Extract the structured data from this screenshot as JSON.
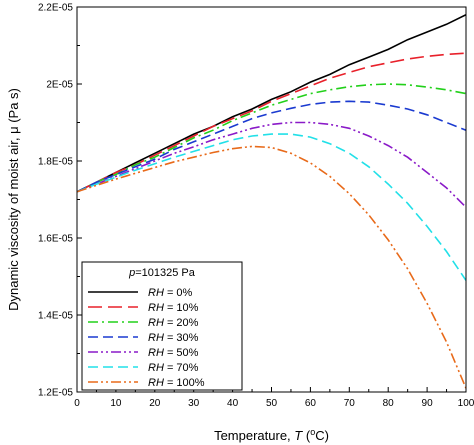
{
  "chart_data": {
    "type": "line",
    "xlabel": "Temperature, T (°C)",
    "xlabel_parts": {
      "prefix": "Temperature, ",
      "var": "T",
      "open": " (",
      "sup": "o",
      "unit": "C)"
    },
    "ylabel": "Dynamic viscosity of moist air, μ (Pa s)",
    "xlim": [
      0,
      100
    ],
    "ylim": [
      1.2e-05,
      2.2e-05
    ],
    "x_ticks": [
      0,
      10,
      20,
      30,
      40,
      50,
      60,
      70,
      80,
      90,
      100
    ],
    "x_tick_labels": [
      "0",
      "10",
      "20",
      "30",
      "40",
      "50",
      "60",
      "70",
      "80",
      "90",
      "100"
    ],
    "y_ticks": [
      1.2e-05,
      1.4e-05,
      1.6e-05,
      1.8e-05,
      2e-05,
      2.2e-05
    ],
    "y_tick_labels": [
      "1.2E-05",
      "1.4E-05",
      "1.6E-05",
      "1.8E-05",
      "2E-05",
      "2.2E-05"
    ],
    "grid": false,
    "legend": {
      "position": "bottom-left",
      "title": "p=101325 Pa",
      "title_parts": {
        "var": "p",
        "rest": "=101325 Pa"
      },
      "entries": [
        {
          "var": "RH",
          "rest": " = 0%"
        },
        {
          "var": "RH",
          "rest": " = 10%"
        },
        {
          "var": "RH",
          "rest": " = 20%"
        },
        {
          "var": "RH",
          "rest": " = 30%"
        },
        {
          "var": "RH",
          "rest": " = 50%"
        },
        {
          "var": "RH",
          "rest": " = 70%"
        },
        {
          "var": "RH",
          "rest": " = 100%"
        }
      ]
    },
    "x": [
      0,
      5,
      10,
      15,
      20,
      25,
      30,
      35,
      40,
      45,
      50,
      55,
      60,
      65,
      70,
      75,
      80,
      85,
      90,
      95,
      100
    ],
    "series": [
      {
        "name": "RH = 0%",
        "color": "#000000",
        "dash": "solid",
        "values": [
          1.72e-05,
          1.745e-05,
          1.77e-05,
          1.795e-05,
          1.82e-05,
          1.845e-05,
          1.87e-05,
          1.89e-05,
          1.915e-05,
          1.935e-05,
          1.96e-05,
          1.98e-05,
          2.005e-05,
          2.025e-05,
          2.05e-05,
          2.07e-05,
          2.09e-05,
          2.115e-05,
          2.135e-05,
          2.155e-05,
          2.18e-05
        ]
      },
      {
        "name": "RH = 10%",
        "color": "#e8202a",
        "dash": "longdash",
        "values": [
          1.72e-05,
          1.745e-05,
          1.77e-05,
          1.79e-05,
          1.815e-05,
          1.84e-05,
          1.865e-05,
          1.89e-05,
          1.91e-05,
          1.93e-05,
          1.955e-05,
          1.975e-05,
          1.995e-05,
          2.015e-05,
          2.03e-05,
          2.045e-05,
          2.055e-05,
          2.065e-05,
          2.072e-05,
          2.077e-05,
          2.08e-05
        ]
      },
      {
        "name": "RH = 20%",
        "color": "#22d01a",
        "dash": "dashdot",
        "values": [
          1.72e-05,
          1.745e-05,
          1.765e-05,
          1.79e-05,
          1.81e-05,
          1.835e-05,
          1.86e-05,
          1.88e-05,
          1.905e-05,
          1.925e-05,
          1.945e-05,
          1.96e-05,
          1.975e-05,
          1.985e-05,
          1.993e-05,
          1.998e-05,
          2e-05,
          1.998e-05,
          1.992e-05,
          1.985e-05,
          1.975e-05
        ]
      },
      {
        "name": "RH = 30%",
        "color": "#1a3ad0",
        "dash": "dash",
        "values": [
          1.72e-05,
          1.745e-05,
          1.765e-05,
          1.785e-05,
          1.805e-05,
          1.83e-05,
          1.85e-05,
          1.87e-05,
          1.89e-05,
          1.91e-05,
          1.925e-05,
          1.937e-05,
          1.947e-05,
          1.953e-05,
          1.955e-05,
          1.953e-05,
          1.945e-05,
          1.935e-05,
          1.92e-05,
          1.9e-05,
          1.88e-05
        ]
      },
      {
        "name": "RH = 50%",
        "color": "#8a1ac8",
        "dash": "dashdotdot",
        "values": [
          1.72e-05,
          1.74e-05,
          1.76e-05,
          1.78e-05,
          1.8e-05,
          1.82e-05,
          1.837e-05,
          1.855e-05,
          1.87e-05,
          1.885e-05,
          1.895e-05,
          1.9e-05,
          1.9e-05,
          1.895e-05,
          1.885e-05,
          1.865e-05,
          1.84e-05,
          1.81e-05,
          1.77e-05,
          1.73e-05,
          1.68e-05
        ]
      },
      {
        "name": "RH = 70%",
        "color": "#22e0e8",
        "dash": "dash",
        "values": [
          1.72e-05,
          1.74e-05,
          1.758e-05,
          1.776e-05,
          1.793e-05,
          1.81e-05,
          1.825e-05,
          1.84e-05,
          1.855e-05,
          1.865e-05,
          1.87e-05,
          1.87e-05,
          1.862e-05,
          1.845e-05,
          1.82e-05,
          1.785e-05,
          1.74e-05,
          1.69e-05,
          1.63e-05,
          1.565e-05,
          1.49e-05
        ]
      },
      {
        "name": "RH = 100%",
        "color": "#e86a1a",
        "dash": "dashdotdot",
        "values": [
          1.72e-05,
          1.737e-05,
          1.753e-05,
          1.768e-05,
          1.783e-05,
          1.798e-05,
          1.81e-05,
          1.822e-05,
          1.832e-05,
          1.838e-05,
          1.835e-05,
          1.82e-05,
          1.795e-05,
          1.76e-05,
          1.715e-05,
          1.66e-05,
          1.595e-05,
          1.52e-05,
          1.43e-05,
          1.33e-05,
          1.21e-05
        ]
      }
    ]
  }
}
